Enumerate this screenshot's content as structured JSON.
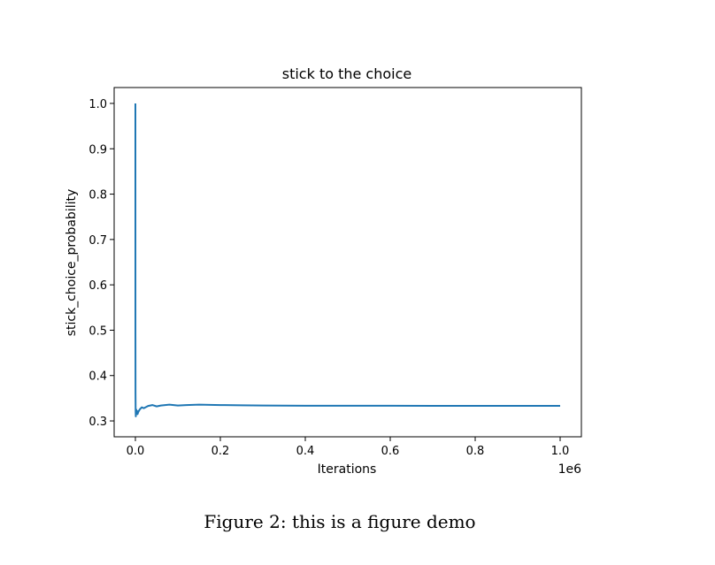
{
  "chart_data": {
    "type": "line",
    "title": "stick to the choice",
    "xlabel": "Iterations",
    "ylabel": "stick_choice_probability",
    "x_offset_label": "1e6",
    "x_ticks": [
      "0.0",
      "0.2",
      "0.4",
      "0.6",
      "0.8",
      "1.0"
    ],
    "y_ticks": [
      "0.3",
      "0.4",
      "0.5",
      "0.6",
      "0.7",
      "0.8",
      "0.9",
      "1.0"
    ],
    "xlim": [
      -0.05,
      1.05
    ],
    "ylim": [
      0.265,
      1.035
    ],
    "grid": false,
    "series": [
      {
        "color": "#1f77b4",
        "x": [
          0.0,
          0.0001,
          0.0003,
          0.0006,
          0.001,
          0.002,
          0.003,
          0.004,
          0.005,
          0.007,
          0.01,
          0.015,
          0.02,
          0.03,
          0.04,
          0.05,
          0.06,
          0.08,
          0.1,
          0.12,
          0.15,
          0.2,
          0.25,
          0.3,
          0.4,
          0.5,
          0.6,
          0.7,
          0.8,
          0.9,
          1.0
        ],
        "y": [
          1.0,
          0.5,
          0.36,
          0.32,
          0.31,
          0.325,
          0.318,
          0.322,
          0.315,
          0.32,
          0.325,
          0.33,
          0.328,
          0.333,
          0.335,
          0.332,
          0.334,
          0.336,
          0.334,
          0.335,
          0.336,
          0.335,
          0.3345,
          0.334,
          0.3335,
          0.3335,
          0.3335,
          0.3333,
          0.3333,
          0.3333,
          0.3333
        ]
      }
    ]
  },
  "caption": "Figure 2: this is a figure demo"
}
